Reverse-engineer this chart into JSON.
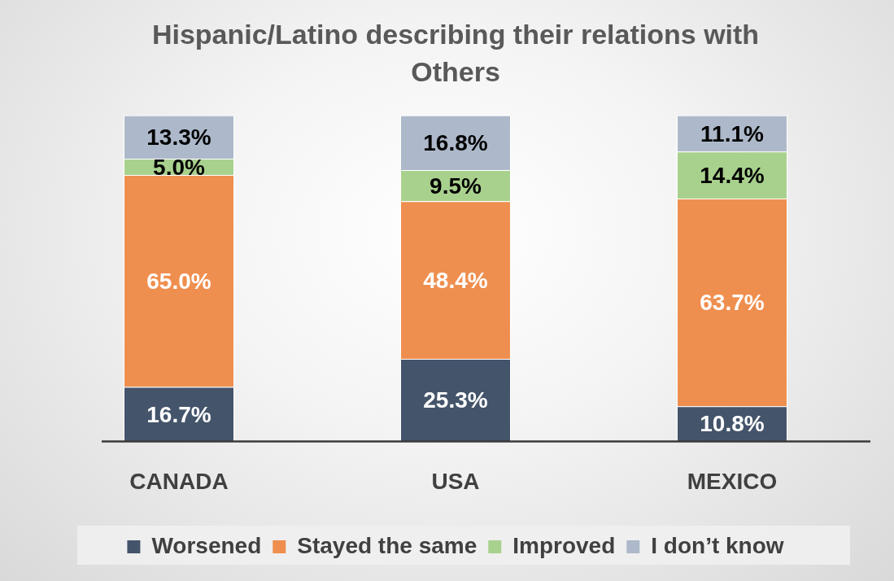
{
  "chart_data": {
    "type": "bar",
    "stacked": true,
    "title": "Hispanic/Latino describing their relations with Others",
    "categories": [
      "CANADA",
      "USA",
      "MEXICO"
    ],
    "legend": "bottom",
    "grid": false,
    "tick_labels": "x",
    "series": [
      {
        "name": "Worsened",
        "color": "#44546a",
        "values": [
          16.7,
          25.3,
          10.8
        ],
        "value_labels": [
          "16.7%",
          "25.3%",
          "10.8%"
        ]
      },
      {
        "name": "Stayed the same",
        "color": "#ef8f4f",
        "values": [
          65.0,
          48.4,
          63.7
        ],
        "value_labels": [
          "65.0%",
          "48.4%",
          "63.7%"
        ]
      },
      {
        "name": "Improved",
        "color": "#a9d18e",
        "values": [
          5.0,
          9.5,
          14.4
        ],
        "value_labels": [
          "5.0%",
          "9.5%",
          "14.4%"
        ]
      },
      {
        "name": "I don’t know",
        "color": "#adb9ca",
        "values": [
          13.3,
          16.8,
          11.1
        ],
        "value_labels": [
          "13.3%",
          "16.8%",
          "11.1%"
        ]
      }
    ]
  }
}
